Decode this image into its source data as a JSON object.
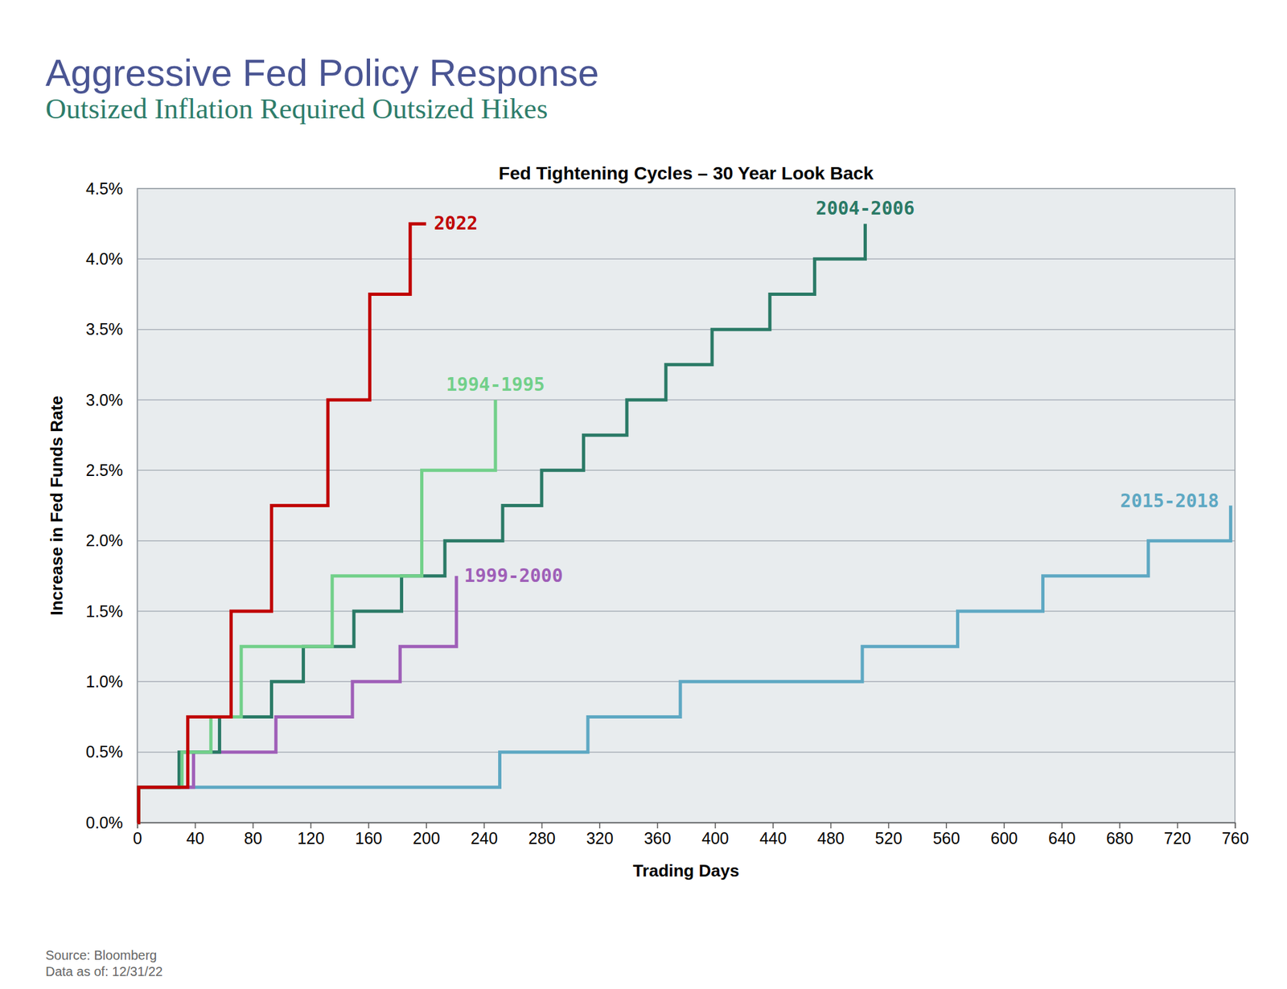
{
  "header": {
    "title": "Aggressive Fed Policy Response",
    "subtitle": "Outsized Inflation Required Outsized Hikes"
  },
  "notes": [
    "Source: Bloomberg",
    "Data as of: 12/31/22"
  ],
  "chart_data": {
    "type": "line",
    "title": "Fed Tightening Cycles – 30 Year Look Back",
    "x_label": "Trading Days",
    "y_label": "Increase in Fed Funds Rate",
    "line_style": "step",
    "grid": true,
    "xlim": [
      0,
      760
    ],
    "xticks": [
      0,
      40,
      80,
      120,
      160,
      200,
      240,
      280,
      320,
      360,
      400,
      440,
      480,
      520,
      560,
      600,
      640,
      680,
      720,
      760
    ],
    "ylim": [
      0,
      4.5
    ],
    "yticks": [
      {
        "value": 0,
        "label": "0.0%"
      },
      {
        "value": 0.5,
        "label": "0.5%"
      },
      {
        "value": 1,
        "label": "1.0%"
      },
      {
        "value": 1.5,
        "label": "1.5%"
      },
      {
        "value": 2,
        "label": "2.0%"
      },
      {
        "value": 2.5,
        "label": "2.5%"
      },
      {
        "value": 3,
        "label": "3.0%"
      },
      {
        "value": 3.5,
        "label": "3.5%"
      },
      {
        "value": 4,
        "label": "4.0%"
      },
      {
        "value": 4.5,
        "label": "4.5%"
      }
    ],
    "series": [
      {
        "name": "2015-2018",
        "color": "#5ea8c3",
        "x": [
          0,
          1,
          251,
          312,
          376,
          502,
          568,
          627,
          700,
          757
        ],
        "values": [
          0,
          0.25,
          0.5,
          0.75,
          1.0,
          1.25,
          1.5,
          1.75,
          2.0,
          2.25
        ]
      },
      {
        "name": "1999-2000",
        "color": "#9f5fb8",
        "x": [
          0,
          1,
          39,
          96,
          149,
          182,
          221
        ],
        "values": [
          0,
          0.25,
          0.5,
          0.75,
          1.0,
          1.25,
          1.75
        ]
      },
      {
        "name": "2004-2006",
        "color": "#2a7a66",
        "x": [
          0,
          1,
          29,
          57,
          93,
          115,
          150,
          183,
          213,
          253,
          280,
          309,
          339,
          366,
          398,
          438,
          469,
          504
        ],
        "values": [
          0,
          0.25,
          0.5,
          0.75,
          1.0,
          1.25,
          1.5,
          1.75,
          2.0,
          2.25,
          2.5,
          2.75,
          3.0,
          3.25,
          3.5,
          3.75,
          4.0,
          4.25
        ]
      },
      {
        "name": "1994-1995",
        "color": "#72d08a",
        "x": [
          0,
          1,
          31,
          51,
          72,
          135,
          197,
          248
        ],
        "values": [
          0,
          0.25,
          0.5,
          0.75,
          1.25,
          1.75,
          2.5,
          3.0
        ]
      },
      {
        "name": "2022",
        "color": "#c00000",
        "x": [
          0,
          1,
          35,
          65,
          93,
          132,
          161,
          189,
          200
        ],
        "values": [
          0,
          0.25,
          0.75,
          1.5,
          2.25,
          3.0,
          3.75,
          4.25,
          4.25
        ]
      }
    ]
  }
}
